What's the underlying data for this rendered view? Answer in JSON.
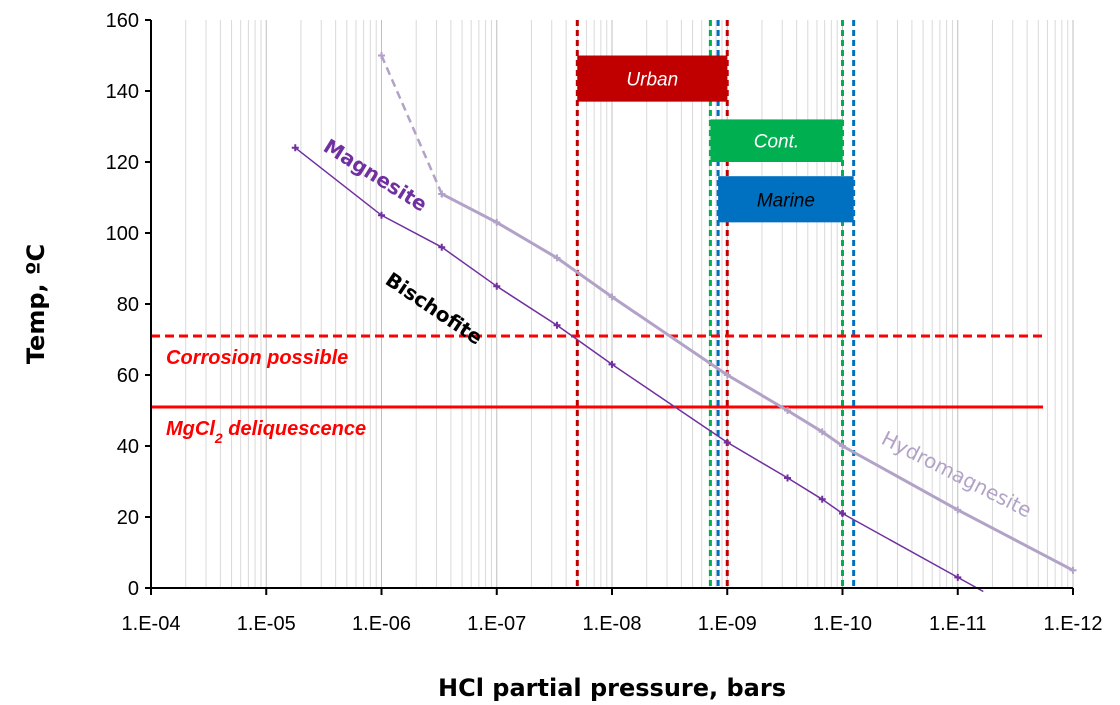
{
  "chart_data": {
    "type": "line",
    "title": "",
    "xlabel": "HCl partial pressure, bars",
    "ylabel": "Temp, ºC",
    "x_scale": "log-reversed",
    "xlim": [
      "1.E-04",
      "1.E-12"
    ],
    "ylim": [
      0,
      160
    ],
    "x_ticks": [
      "1.E-04",
      "1.E-05",
      "1.E-06",
      "1.E-07",
      "1.E-08",
      "1.E-09",
      "1.E-10",
      "1.E-11",
      "1.E-12"
    ],
    "y_ticks": [
      0,
      20,
      40,
      60,
      80,
      100,
      120,
      140,
      160
    ],
    "grid": "minor vertical gridlines on log x-axis",
    "series": [
      {
        "name": "Bischofite",
        "color": "#7030a0",
        "style": "solid-thin-markers",
        "points": [
          [
            5.6e-06,
            124
          ],
          [
            1e-06,
            105
          ],
          [
            3e-07,
            96
          ],
          [
            1e-07,
            85
          ],
          [
            3e-08,
            74
          ],
          [
            1e-08,
            63
          ],
          [
            1e-09,
            41
          ],
          [
            3e-10,
            31
          ],
          [
            1.5e-10,
            25
          ],
          [
            1e-10,
            21
          ],
          [
            1e-11,
            3
          ],
          [
            6e-12,
            -1
          ]
        ]
      },
      {
        "name": "Magnesite",
        "color": "#7030a0",
        "style": "label-only"
      },
      {
        "name": "Hydromagnesite",
        "color": "#b3a2c7",
        "style": "solid-thick-markers",
        "points": [
          [
            3e-07,
            111
          ],
          [
            1e-07,
            103
          ],
          [
            3e-08,
            93
          ],
          [
            1e-08,
            82
          ],
          [
            1e-09,
            60
          ],
          [
            3e-10,
            50
          ],
          [
            1.5e-10,
            44
          ],
          [
            1e-10,
            40
          ],
          [
            1e-11,
            22
          ],
          [
            1e-12,
            5
          ]
        ]
      },
      {
        "name": "",
        "color": "#b3a2c7",
        "style": "dashed",
        "points": [
          [
            1e-06,
            150
          ],
          [
            3e-07,
            111
          ]
        ]
      }
    ],
    "horizontal_lines": [
      {
        "y": 71,
        "style": "dashed",
        "color": "#ff0000",
        "label": "Corrosion possible"
      },
      {
        "y": 51,
        "style": "solid",
        "color": "#ff0000",
        "label_main": "MgCl",
        "label_sub": "2",
        "label_rest": " deliquescence"
      }
    ],
    "vertical_lines": [
      {
        "x": 2e-08,
        "color": "#c00000",
        "style": "dashed"
      },
      {
        "x": 1e-09,
        "color": "#c00000",
        "style": "dashed"
      },
      {
        "x": 1.4e-09,
        "color": "#00b050",
        "style": "dashed"
      },
      {
        "x": 1e-10,
        "color": "#00b050",
        "style": "dashed"
      },
      {
        "x": 1.2e-09,
        "color": "#0070c0",
        "style": "dashed"
      },
      {
        "x": 8e-11,
        "color": "#0070c0",
        "style": "dashed"
      }
    ],
    "bands": [
      {
        "label": "Urban",
        "x1": 2e-08,
        "x2": 1e-09,
        "y1": 137,
        "y2": 150,
        "fill": "#c00000",
        "text_color": "#ffffff"
      },
      {
        "label": "Cont.",
        "x1": 1.4e-09,
        "x2": 1e-10,
        "y1": 120,
        "y2": 132,
        "fill": "#00b050",
        "text_color": "#ffffff"
      },
      {
        "label": "Marine",
        "x1": 1.2e-09,
        "x2": 8e-11,
        "y1": 103,
        "y2": 116,
        "fill": "#0070c0",
        "text_color": "#000000"
      }
    ]
  }
}
